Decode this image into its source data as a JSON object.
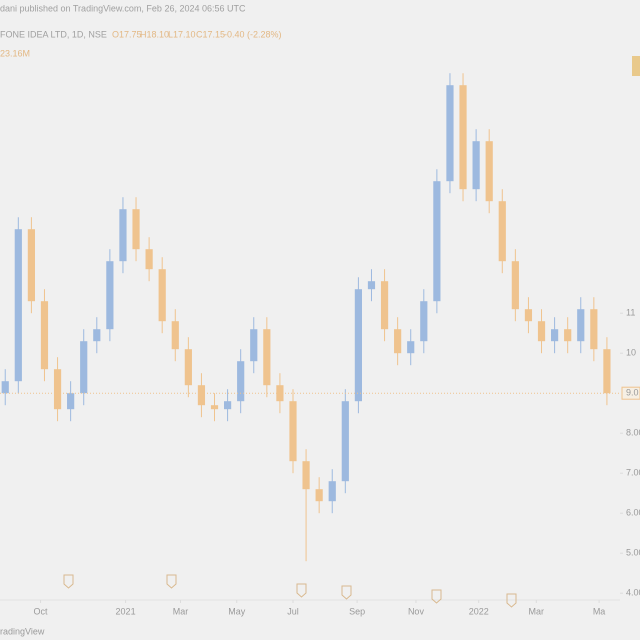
{
  "header": {
    "publisher": "dani published on TradingView.com, Feb 26, 2024 06:56 UTC",
    "symbol": "FONE IDEA LTD, 1D, NSE",
    "ohlc": [
      "O17.75",
      "H18.10",
      "L17.10",
      "C17.15",
      "-0.40 (-2.28%)"
    ],
    "volume": "23.16M"
  },
  "footer": {
    "brand": "radingView"
  },
  "chart_data": {
    "type": "candlestick",
    "up_color": "#9db9df",
    "down_color": "#efc38e",
    "open": [
      9.0,
      9.3,
      13.1,
      11.3,
      9.6,
      8.6,
      9.0,
      10.3,
      10.6,
      12.3,
      13.6,
      12.6,
      12.1,
      10.8,
      10.1,
      9.2,
      8.7,
      8.6,
      8.8,
      9.8,
      10.6,
      9.2,
      8.8,
      7.3,
      6.6,
      6.3,
      6.8,
      8.8,
      11.6,
      11.8,
      10.6,
      10.0,
      10.3,
      11.3,
      14.3,
      16.7,
      14.1,
      15.3,
      13.8,
      12.3,
      11.1,
      10.8,
      10.3,
      10.6,
      10.3,
      11.1,
      10.1
    ],
    "high": [
      9.6,
      13.4,
      13.4,
      11.6,
      9.9,
      9.3,
      10.6,
      10.9,
      12.6,
      13.9,
      13.9,
      12.9,
      12.4,
      11.1,
      10.4,
      9.5,
      9.0,
      9.1,
      10.1,
      10.9,
      10.9,
      9.5,
      9.1,
      7.6,
      6.9,
      7.1,
      9.1,
      11.9,
      12.1,
      12.1,
      10.9,
      10.6,
      11.6,
      14.6,
      17.0,
      17.0,
      15.6,
      15.6,
      14.1,
      12.6,
      11.4,
      11.1,
      10.9,
      10.9,
      11.4,
      11.4,
      10.4
    ],
    "low": [
      8.7,
      9.0,
      11.0,
      9.3,
      8.3,
      8.3,
      8.7,
      10.0,
      10.3,
      12.0,
      12.3,
      11.8,
      10.5,
      9.8,
      8.9,
      8.4,
      8.3,
      8.3,
      8.5,
      9.5,
      8.9,
      8.5,
      7.0,
      4.8,
      6.0,
      6.0,
      6.5,
      8.5,
      11.3,
      10.3,
      9.7,
      9.7,
      10.0,
      11.0,
      14.0,
      13.8,
      13.8,
      13.5,
      12.0,
      10.8,
      10.5,
      10.0,
      10.0,
      10.0,
      10.0,
      9.8,
      8.7
    ],
    "close": [
      9.3,
      13.1,
      11.3,
      9.6,
      8.6,
      9.0,
      10.3,
      10.6,
      12.3,
      13.6,
      12.6,
      12.1,
      10.8,
      10.1,
      9.2,
      8.7,
      8.6,
      8.8,
      9.8,
      10.6,
      9.2,
      8.8,
      7.3,
      6.6,
      6.3,
      6.8,
      8.8,
      11.6,
      11.8,
      10.6,
      10.0,
      10.3,
      11.3,
      14.3,
      16.7,
      14.1,
      15.3,
      13.8,
      12.3,
      11.1,
      10.8,
      10.3,
      10.6,
      10.3,
      11.1,
      10.1,
      9.0
    ],
    "last_price_label": "9.0",
    "xlim": [
      -0.4,
      47
    ],
    "xticks": [
      {
        "value": 2.7,
        "label": "Oct"
      },
      {
        "value": 9.2,
        "label": "2021"
      },
      {
        "value": 13.4,
        "label": "Mar"
      },
      {
        "value": 17.7,
        "label": "May"
      },
      {
        "value": 22.0,
        "label": "Jul"
      },
      {
        "value": 26.9,
        "label": "Sep"
      },
      {
        "value": 31.4,
        "label": "Nov"
      },
      {
        "value": 36.2,
        "label": "2022"
      },
      {
        "value": 40.6,
        "label": "Mar"
      },
      {
        "value": 45.4,
        "label": "Ma"
      }
    ],
    "ylim": [
      3.83,
      18.83
    ],
    "yticks": [
      {
        "value": 11,
        "label": "11"
      },
      {
        "value": 10,
        "label": "10"
      },
      {
        "value": 8,
        "label": "8.00"
      },
      {
        "value": 7,
        "label": "7.00"
      },
      {
        "value": 6,
        "label": "6.00"
      },
      {
        "value": 5,
        "label": "5.00"
      },
      {
        "value": 4,
        "label": "4.00"
      }
    ]
  }
}
